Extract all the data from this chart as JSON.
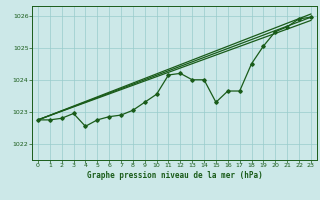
{
  "title": "Graphe pression niveau de la mer (hPa)",
  "bg_color": "#cce8e8",
  "grid_color": "#99cccc",
  "line_color": "#1a5c1a",
  "label_color": "#1a5c1a",
  "xlim": [
    -0.5,
    23.5
  ],
  "ylim": [
    1021.5,
    1026.3
  ],
  "yticks": [
    1022,
    1023,
    1024,
    1025,
    1026
  ],
  "xticks": [
    0,
    1,
    2,
    3,
    4,
    5,
    6,
    7,
    8,
    9,
    10,
    11,
    12,
    13,
    14,
    15,
    16,
    17,
    18,
    19,
    20,
    21,
    22,
    23
  ],
  "main_x": [
    0,
    1,
    2,
    3,
    4,
    5,
    6,
    7,
    8,
    9,
    10,
    11,
    12,
    13,
    14,
    15,
    16,
    17,
    18,
    19,
    20,
    21,
    22,
    23
  ],
  "main_y": [
    1022.75,
    1022.75,
    1022.8,
    1022.95,
    1022.55,
    1022.75,
    1022.85,
    1022.9,
    1023.05,
    1023.3,
    1023.55,
    1024.15,
    1024.2,
    1024.0,
    1024.0,
    1023.3,
    1023.65,
    1023.65,
    1024.5,
    1025.05,
    1025.5,
    1025.65,
    1025.9,
    1025.95
  ],
  "trend1_x": [
    0,
    23
  ],
  "trend1_y": [
    1022.75,
    1025.85
  ],
  "trend2_x": [
    0,
    23
  ],
  "trend2_y": [
    1022.75,
    1025.95
  ],
  "trend3_x": [
    0,
    23
  ],
  "trend3_y": [
    1022.75,
    1026.05
  ]
}
